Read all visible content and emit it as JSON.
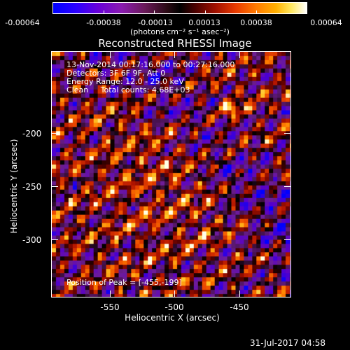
{
  "colorbar": {
    "tick_labels": [
      "-0.00064",
      "-0.00038",
      "-0.00013",
      "0.00013",
      "0.00038",
      "0.00064"
    ],
    "units": "(photons cm⁻² s⁻¹ asec⁻²)",
    "range": [
      -0.00064,
      0.00064
    ],
    "palette": "blue-black-red-yellow-white"
  },
  "image": {
    "title": "Reconstructed RHESSI Image",
    "info_lines": [
      "13-Nov-2014 00:17:16.000 to 00:27:16.000",
      "Detectors: 3F 6F 9F, Att 0",
      "Energy Range: 12.0 - 25.0 keV",
      "Clean     Total counts: 4.68E+03"
    ],
    "peak_text": "Position of Peak = [-455,-199]",
    "x_axis_label": "Heliocentric X (arcsec)",
    "y_axis_label": "Heliocentric Y (arcsec)",
    "x_tick_labels": [
      "-550",
      "-500",
      "-450"
    ],
    "y_tick_labels": [
      "-200",
      "-250",
      "-300"
    ],
    "x_range": [
      -595,
      -410
    ],
    "y_range": [
      -345,
      -155
    ],
    "peak": [
      -455,
      -199
    ]
  },
  "footer": {
    "timestamp": "31-Jul-2017 04:58"
  }
}
